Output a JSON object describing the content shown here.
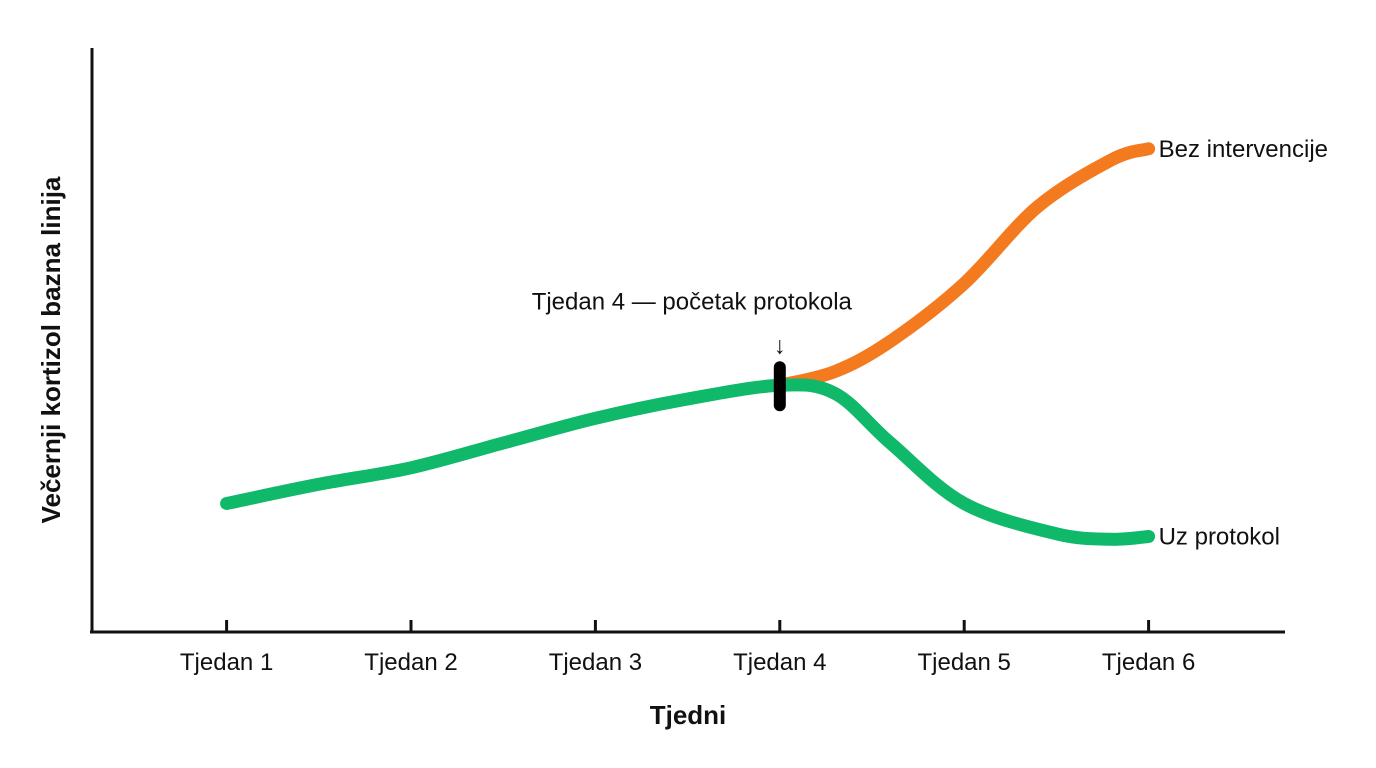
{
  "chart_data": {
    "type": "line",
    "title": "",
    "xlabel": "Tjedni",
    "ylabel": "Večernji kortizol bazna linija",
    "categories": [
      "Tjedan 1",
      "Tjedan 2",
      "Tjedan 3",
      "Tjedan 4",
      "Tjedan 5",
      "Tjedan 6"
    ],
    "x": [
      1,
      2,
      3,
      4,
      5,
      6
    ],
    "xlim": [
      0.27,
      6.74
    ],
    "ylim": [
      0,
      10
    ],
    "grid": false,
    "series": [
      {
        "name": "Uz protokol",
        "color": "#10b86a",
        "x": [
          1,
          1.5,
          2,
          2.5,
          3,
          3.5,
          4,
          4.3,
          4.6,
          5,
          5.5,
          5.8,
          6
        ],
        "values": [
          2.3,
          2.65,
          2.95,
          3.4,
          3.85,
          4.2,
          4.45,
          4.3,
          3.4,
          2.3,
          1.75,
          1.65,
          1.7
        ]
      },
      {
        "name": "Bez intervencije",
        "color": "#f47a1f",
        "x": [
          4,
          4.3,
          4.6,
          5,
          5.4,
          5.8,
          6
        ],
        "values": [
          4.45,
          4.7,
          5.25,
          6.3,
          7.7,
          8.55,
          8.75
        ]
      }
    ],
    "annotation": {
      "text": "Tjedan 4 — početak protokola",
      "arrow": "↓",
      "x": 4,
      "marker_color": "#000000"
    }
  }
}
